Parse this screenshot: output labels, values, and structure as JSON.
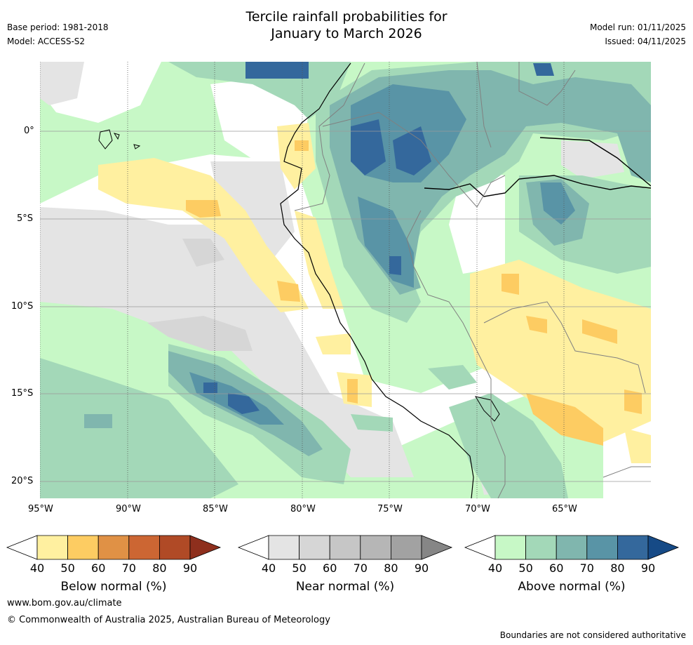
{
  "header": {
    "title_line1": "Tercile rainfall probabilities for",
    "title_line2": "January to March 2026",
    "base_period": "Base period: 1981-2018",
    "model": "Model: ACCESS-S2",
    "model_run": "Model run: 01/11/2025",
    "issued": "Issued: 04/11/2025"
  },
  "map": {
    "lat_labels": [
      "0°",
      "5°S",
      "10°S",
      "15°S",
      "20°S"
    ],
    "lon_labels": [
      "95°W",
      "90°W",
      "85°W",
      "80°W",
      "75°W",
      "70°W",
      "65°W"
    ]
  },
  "legends": [
    {
      "label": "Below normal (%)",
      "ticks": [
        "40",
        "50",
        "60",
        "70",
        "80",
        "90"
      ],
      "colors": [
        "#fff0a0",
        "#fdcc62",
        "#e09145",
        "#cc6633",
        "#b04a26",
        "#8e2f1d"
      ]
    },
    {
      "label": "Near normal (%)",
      "ticks": [
        "40",
        "50",
        "60",
        "70",
        "80",
        "90"
      ],
      "colors": [
        "#e4e4e4",
        "#d6d6d6",
        "#c6c6c6",
        "#b6b6b6",
        "#a2a2a2",
        "#868686"
      ]
    },
    {
      "label": "Above normal (%)",
      "ticks": [
        "40",
        "50",
        "60",
        "70",
        "80",
        "90"
      ],
      "colors": [
        "#c7f8c6",
        "#a3d8b8",
        "#80b6ae",
        "#5994a6",
        "#34689c",
        "#164a86"
      ]
    }
  ],
  "footer": {
    "website": "www.bom.gov.au/climate",
    "copyright": "© Commonwealth of Australia 2025, Australian Bureau of Meteorology",
    "disclaimer": "Boundaries are not considered authoritative"
  }
}
